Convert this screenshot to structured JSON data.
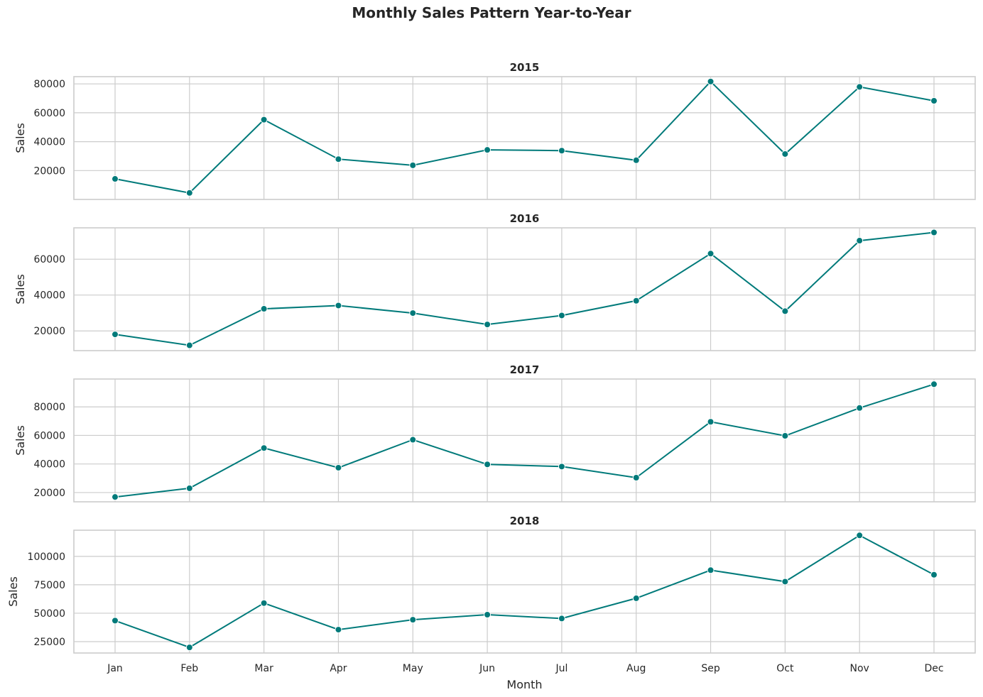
{
  "title": "Monthly Sales Pattern Year-to-Year",
  "colors": {
    "line": "#007a7a",
    "grid": "#cccccc",
    "frame": "#cccccc",
    "text": "#262626"
  },
  "chart_data": {
    "type": "line",
    "title": "Monthly Sales Pattern Year-to-Year",
    "xlabel": "Month",
    "ylabel": "Sales",
    "categories": [
      "Jan",
      "Feb",
      "Mar",
      "Apr",
      "May",
      "Jun",
      "Jul",
      "Aug",
      "Sep",
      "Oct",
      "Nov",
      "Dec"
    ],
    "grid": true,
    "marker": "circle",
    "shared_x": true,
    "panels": [
      {
        "title": "2015",
        "ylabel": "Sales",
        "ylim": [
          0,
          85000
        ],
        "yticks": [
          20000,
          40000,
          60000,
          80000
        ],
        "values": [
          14237,
          4520,
          55206,
          27906,
          23645,
          34322,
          33781,
          27118,
          81624,
          31453,
          77907,
          68292
        ]
      },
      {
        "title": "2016",
        "ylabel": "Sales",
        "ylim": [
          9000,
          77500
        ],
        "yticks": [
          20000,
          40000,
          60000
        ],
        "values": [
          18066,
          11951,
          32339,
          34154,
          29959,
          23599,
          28608,
          36818,
          63133,
          31011,
          70352,
          74920
        ]
      },
      {
        "title": "2017",
        "ylabel": "Sales",
        "ylim": [
          13500,
          99500
        ],
        "yticks": [
          20000,
          40000,
          60000,
          80000
        ],
        "values": [
          16900,
          22979,
          51165,
          37378,
          56987,
          39722,
          38196,
          30399,
          69549,
          59738,
          79225,
          95886
        ]
      },
      {
        "title": "2018",
        "ylabel": "Sales",
        "ylim": [
          15000,
          123000
        ],
        "yticks": [
          25000,
          50000,
          75000,
          100000
        ],
        "values": [
          43476,
          19920,
          58872,
          35541,
          44261,
          48720,
          45340,
          63121,
          87867,
          77777,
          118448,
          83829
        ]
      }
    ]
  }
}
